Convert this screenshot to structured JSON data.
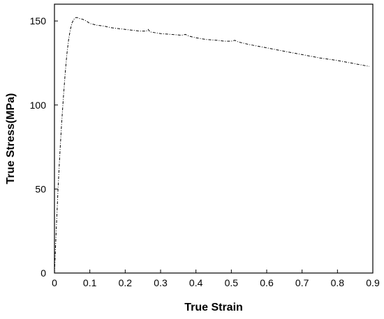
{
  "chart_data": {
    "type": "line",
    "title": "",
    "xlabel": "True Strain",
    "ylabel": "True Stress(MPa)",
    "xlim": [
      0,
      0.9
    ],
    "ylim": [
      0,
      160
    ],
    "xticks": [
      "0",
      "0.1",
      "0.2",
      "0.3",
      "0.4",
      "0.5",
      "0.6",
      "0.7",
      "0.8",
      "0.9"
    ],
    "yticks": [
      "0",
      "50",
      "100",
      "150"
    ],
    "xtick_values": [
      0,
      0.1,
      0.2,
      0.3,
      0.4,
      0.5,
      0.6,
      0.7,
      0.8,
      0.9
    ],
    "ytick_values": [
      0,
      50,
      100,
      150
    ],
    "grid": false,
    "line_style": "dash-dot",
    "line_color": "#000000",
    "series": [
      {
        "x": [
          0.0,
          0.005,
          0.01,
          0.015,
          0.02,
          0.025,
          0.03,
          0.035,
          0.04,
          0.045,
          0.05,
          0.055,
          0.06,
          0.065,
          0.07,
          0.08,
          0.09,
          0.1,
          0.12,
          0.14,
          0.16,
          0.18,
          0.2,
          0.22,
          0.24,
          0.26,
          0.265,
          0.27,
          0.3,
          0.33,
          0.36,
          0.37,
          0.38,
          0.4,
          0.43,
          0.46,
          0.48,
          0.5,
          0.51,
          0.52,
          0.55,
          0.6,
          0.65,
          0.7,
          0.75,
          0.8,
          0.85,
          0.89
        ],
        "y": [
          0,
          25,
          50,
          70,
          88,
          104,
          118,
          130,
          139,
          145,
          149,
          151,
          152,
          152,
          151.5,
          151,
          150,
          148.5,
          147.5,
          147,
          146,
          145.5,
          145,
          144.5,
          144,
          144,
          145,
          143.5,
          142.5,
          142,
          141.5,
          142,
          141,
          140,
          139,
          138.5,
          138,
          138,
          138.5,
          137.5,
          136,
          134,
          132,
          130,
          128,
          126.5,
          124.5,
          123
        ]
      }
    ]
  }
}
